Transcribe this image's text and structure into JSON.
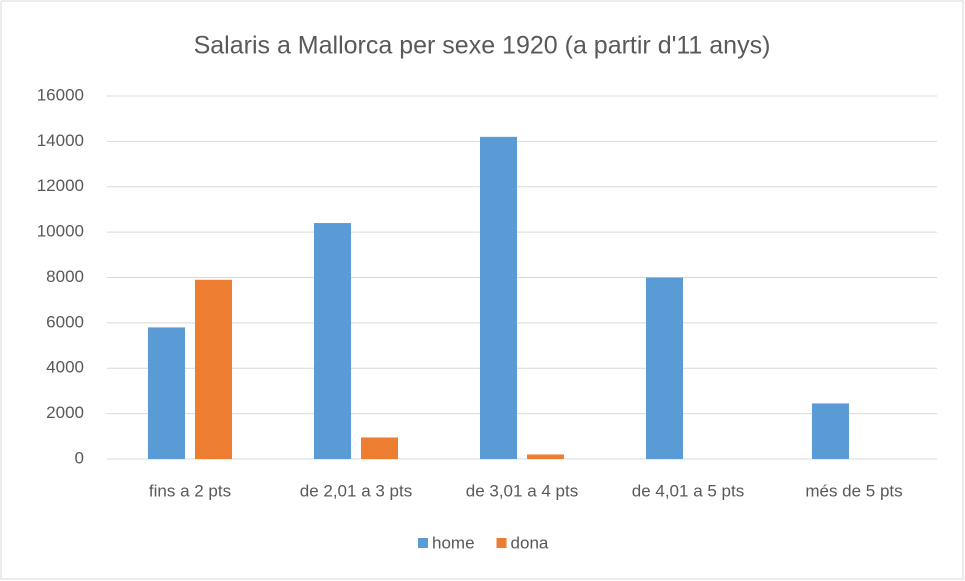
{
  "chart_data": {
    "type": "bar",
    "title": "Salaris a Mallorca per sexe 1920 (a partir d'11 anys)",
    "categories": [
      "fins a 2 pts",
      "de 2,01 a 3 pts",
      "de 3,01 a 4 pts",
      "de 4,01 a 5 pts",
      "més de 5 pts"
    ],
    "series": [
      {
        "name": "home",
        "color": "#5b9bd5",
        "values": [
          5800,
          10400,
          14200,
          8000,
          2450
        ]
      },
      {
        "name": "dona",
        "color": "#ed7d31",
        "values": [
          7900,
          950,
          200,
          0,
          0
        ]
      }
    ],
    "ylim": [
      0,
      16000
    ],
    "yticks": [
      0,
      2000,
      4000,
      6000,
      8000,
      10000,
      12000,
      14000,
      16000
    ],
    "grid": true,
    "legend": "bottom"
  }
}
